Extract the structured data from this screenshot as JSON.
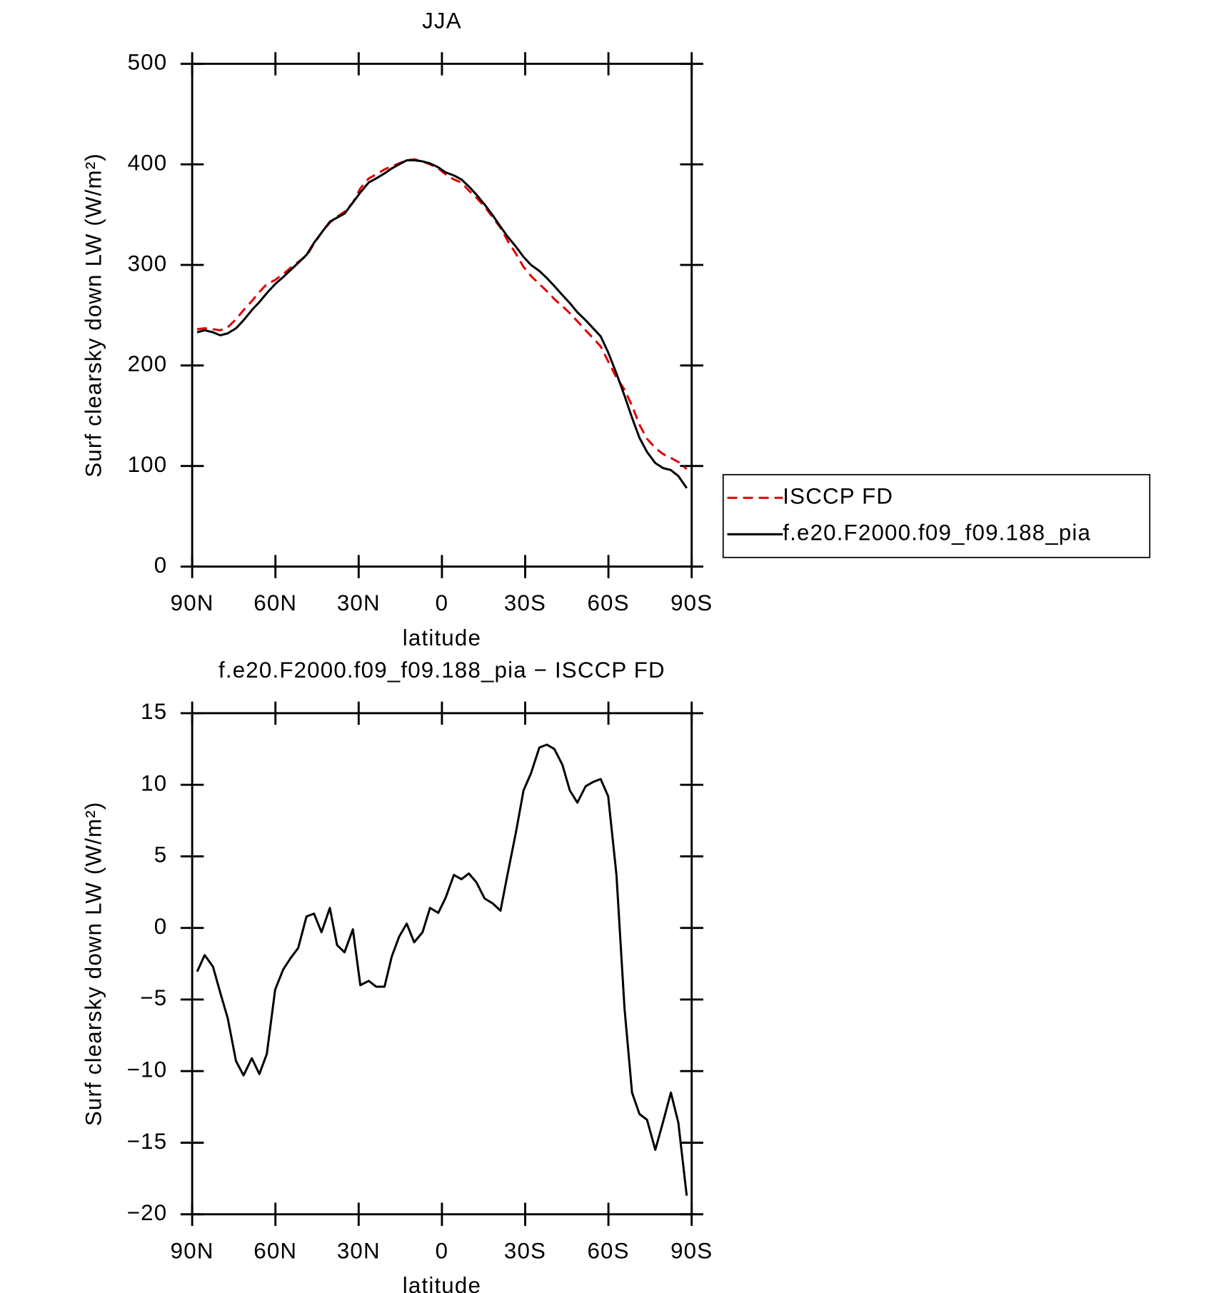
{
  "chart_data": [
    {
      "type": "line",
      "title": "JJA",
      "xlabel": "latitude",
      "ylabel": "Surf clearsky down LW (W/m²)",
      "xlim": [
        90,
        -90
      ],
      "xticks": [
        {
          "value": 90,
          "label": "90N"
        },
        {
          "value": 60,
          "label": "60N"
        },
        {
          "value": 30,
          "label": "30N"
        },
        0,
        {
          "value": -30,
          "label": "30S"
        },
        {
          "value": -60,
          "label": "60S"
        },
        {
          "value": -90,
          "label": "90S"
        }
      ],
      "ylim": [
        0,
        500
      ],
      "yticks": [
        0,
        100,
        200,
        300,
        400,
        500
      ],
      "x": [
        88.2,
        85.5,
        82.5,
        79.9,
        77.2,
        74.2,
        71.5,
        68.5,
        65.8,
        63.1,
        60.1,
        57.2,
        54.5,
        51.8,
        48.8,
        46.1,
        43.4,
        40.4,
        37.8,
        35.1,
        32.1,
        29.4,
        26.4,
        23.7,
        20.7,
        18.1,
        15.4,
        12.7,
        10.0,
        7.0,
        4.3,
        1.3,
        -1.3,
        -4.3,
        -7.0,
        -9.7,
        -12.4,
        -15.4,
        -18.4,
        -21.1,
        -23.7,
        -26.7,
        -29.4,
        -32.1,
        -35.1,
        -37.8,
        -40.5,
        -43.4,
        -46.1,
        -48.8,
        -51.8,
        -54.5,
        -57.2,
        -59.9,
        -62.9,
        -65.8,
        -68.5,
        -71.2,
        -73.9,
        -76.9,
        -79.6,
        -82.5,
        -85.2,
        -88.2
      ],
      "series": [
        {
          "name": "ISCCP FD",
          "color": "#e00000",
          "dashed": true,
          "values": [
            236,
            237,
            236,
            235,
            238,
            246,
            255,
            264,
            273,
            281,
            285,
            291,
            297,
            303,
            309,
            321,
            332,
            342,
            348,
            353,
            362,
            376,
            386,
            390,
            395,
            398,
            401,
            404,
            405,
            403,
            400,
            396,
            390,
            385,
            382,
            374,
            367,
            358,
            347,
            337,
            324,
            311,
            298,
            289,
            281,
            274,
            266,
            259,
            252,
            244,
            235,
            227,
            219,
            204,
            188,
            176,
            160,
            141,
            127,
            118,
            112,
            108,
            104,
            97
          ]
        },
        {
          "name": "f.e20.F2000.f09_f09.188_pia",
          "color": "#000000",
          "dashed": false,
          "values": [
            233,
            235,
            233,
            230,
            232,
            237,
            245,
            255,
            263,
            272,
            281,
            288,
            295,
            302,
            310,
            322,
            332,
            343,
            347,
            351,
            362,
            372,
            382,
            386,
            391,
            396,
            400,
            404,
            404,
            403,
            401,
            397,
            392,
            389,
            385,
            378,
            370,
            360,
            349,
            338,
            328,
            318,
            308,
            300,
            294,
            287,
            279,
            270,
            262,
            253,
            245,
            237,
            229,
            213,
            192,
            170,
            148,
            128,
            114,
            103,
            98,
            96,
            90,
            78
          ]
        }
      ]
    },
    {
      "type": "line",
      "title": "f.e20.F2000.f09_f09.188_pia − ISCCP FD",
      "xlabel": "latitude",
      "ylabel": "Surf clearsky down LW (W/m²)",
      "xlim": [
        90,
        -90
      ],
      "xticks": [
        {
          "value": 90,
          "label": "90N"
        },
        {
          "value": 60,
          "label": "60N"
        },
        {
          "value": 30,
          "label": "30N"
        },
        0,
        {
          "value": -30,
          "label": "30S"
        },
        {
          "value": -60,
          "label": "60S"
        },
        {
          "value": -90,
          "label": "90S"
        }
      ],
      "ylim": [
        -20,
        15
      ],
      "yticks": [
        {
          "value": -20,
          "label": "−20"
        },
        {
          "value": -15,
          "label": "−15"
        },
        {
          "value": -10,
          "label": "−10"
        },
        {
          "value": -5,
          "label": "−5"
        },
        0,
        5,
        10,
        15
      ],
      "x": [
        88.2,
        85.5,
        82.5,
        79.9,
        77.2,
        74.2,
        71.5,
        68.5,
        65.8,
        63.1,
        60.1,
        57.2,
        54.5,
        51.8,
        48.8,
        46.1,
        43.4,
        40.4,
        37.8,
        35.1,
        32.1,
        29.4,
        26.4,
        23.7,
        20.7,
        18.1,
        15.4,
        12.7,
        10.0,
        7.0,
        4.3,
        1.3,
        -1.3,
        -4.3,
        -7.0,
        -9.7,
        -12.4,
        -15.4,
        -18.4,
        -21.1,
        -23.7,
        -26.7,
        -29.4,
        -32.1,
        -35.1,
        -37.8,
        -40.5,
        -43.4,
        -46.1,
        -48.8,
        -51.8,
        -54.5,
        -57.2,
        -59.9,
        -62.9,
        -65.8,
        -68.5,
        -71.2,
        -73.9,
        -76.9,
        -79.6,
        -82.5,
        -85.2,
        -88.2
      ],
      "series": [
        {
          "color": "#000000",
          "dashed": false,
          "values": [
            -3.05,
            -1.9,
            -2.7,
            -4.5,
            -6.3,
            -9.3,
            -10.3,
            -9.1,
            -10.2,
            -8.8,
            -4.3,
            -2.9,
            -2.1,
            -1.4,
            0.8,
            1.0,
            -0.3,
            1.4,
            -1.2,
            -1.7,
            -0.1,
            -4.0,
            -3.7,
            -4.1,
            -4.1,
            -2.0,
            -0.6,
            0.3,
            -1.0,
            -0.3,
            1.4,
            1.05,
            2.1,
            3.7,
            3.4,
            3.8,
            3.2,
            2.05,
            1.7,
            1.2,
            3.8,
            6.7,
            9.6,
            10.8,
            12.6,
            12.8,
            12.5,
            11.4,
            9.6,
            8.75,
            9.9,
            10.2,
            10.4,
            9.2,
            3.7,
            -5.6,
            -11.5,
            -13.0,
            -13.4,
            -15.5,
            -13.6,
            -11.5,
            -13.6,
            -18.7
          ]
        }
      ]
    }
  ]
}
